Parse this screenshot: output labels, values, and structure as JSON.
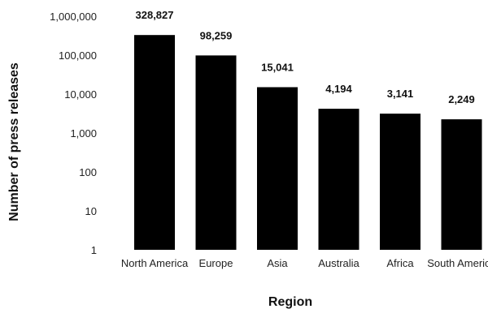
{
  "chart_data": {
    "type": "bar",
    "xlabel": "Region",
    "ylabel": "Number of press releases",
    "yscale": "log",
    "ylim": [
      1,
      1000000
    ],
    "grid": false,
    "bar_color": "#000000",
    "categories": [
      "North America",
      "Europe",
      "Asia",
      "Australia",
      "Africa",
      "South America"
    ],
    "values": [
      328827,
      98259,
      15041,
      4194,
      3141,
      2249
    ],
    "data_labels": [
      "328,827",
      "98,259",
      "15,041",
      "4,194",
      "3,141",
      "2,249"
    ],
    "y_ticks": [
      {
        "value": 1,
        "label": "1"
      },
      {
        "value": 10,
        "label": "10"
      },
      {
        "value": 100,
        "label": "100"
      },
      {
        "value": 1000,
        "label": "1,000"
      },
      {
        "value": 10000,
        "label": "10,000"
      },
      {
        "value": 100000,
        "label": "100,000"
      },
      {
        "value": 1000000,
        "label": "1,000,000"
      }
    ]
  }
}
